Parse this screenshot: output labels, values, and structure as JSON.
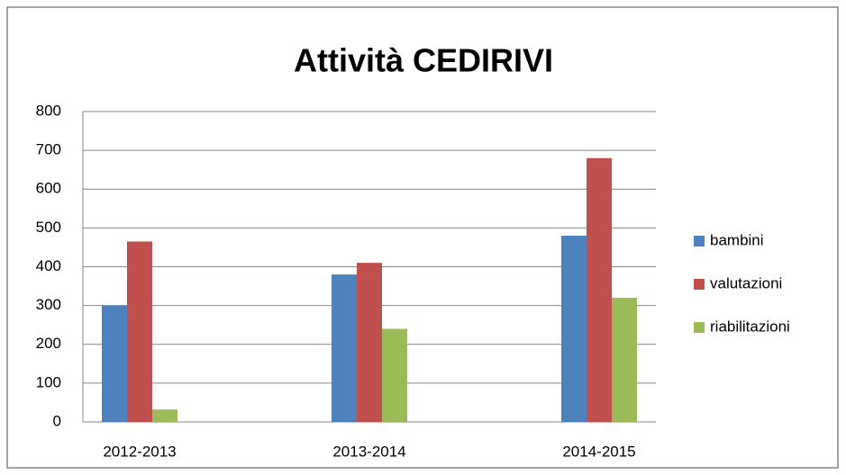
{
  "chart_data": {
    "type": "bar",
    "title": "Attività CEDIRIVI",
    "categories": [
      "2012-2013",
      "2013-2014",
      "2014-2015"
    ],
    "series": [
      {
        "name": "bambini",
        "color": "#4f81bd",
        "values": [
          300,
          380,
          480
        ]
      },
      {
        "name": "valutazioni",
        "color": "#c0504d",
        "values": [
          465,
          410,
          680
        ]
      },
      {
        "name": "riabilitazioni",
        "color": "#9bbb59",
        "values": [
          32,
          240,
          320
        ]
      }
    ],
    "ylim": [
      0,
      800
    ],
    "yticks": [
      0,
      100,
      200,
      300,
      400,
      500,
      600,
      700,
      800
    ],
    "grid": true,
    "legend": "right"
  }
}
